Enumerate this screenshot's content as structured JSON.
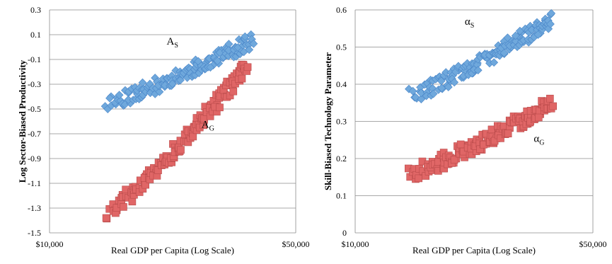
{
  "chart_data": [
    {
      "type": "scatter",
      "title": "",
      "xlabel": "Real GDP per Capita (Log Scale)",
      "ylabel": "Log Sector-Biased Productivity",
      "x_scale": "log",
      "xlim": [
        10000,
        50000
      ],
      "x_ticks": [
        "$10,000",
        "$50,000"
      ],
      "ylim": [
        -1.5,
        0.3
      ],
      "y_ticks": [
        "0.3",
        "0.1",
        "-0.1",
        "-0.3",
        "-0.5",
        "-0.7",
        "-0.9",
        "-1.1",
        "-1.3",
        "-1.5"
      ],
      "grid": true,
      "series": [
        {
          "label_main": "A",
          "label_sub": "S",
          "marker": "diamond",
          "color": "#6fa8dc",
          "x_range": [
            14500,
            37500
          ],
          "y_start": -0.45,
          "y_end": 0.05,
          "label_at": [
            21500,
            0.02
          ]
        },
        {
          "label_main": "A",
          "label_sub": "G",
          "marker": "square",
          "color": "#e06666",
          "x_range": [
            14500,
            36500
          ],
          "y_start": -1.34,
          "y_end": -0.15,
          "label_at": [
            27000,
            -0.65
          ]
        }
      ]
    },
    {
      "type": "scatter",
      "title": "",
      "xlabel": "Real GDP per Capita (Log Scale)",
      "ylabel": "Skill-Biased Technology Parameter",
      "x_scale": "log",
      "xlim": [
        10000,
        50000
      ],
      "x_ticks": [
        "$10,000",
        "$50,000"
      ],
      "ylim": [
        0,
        0.6
      ],
      "y_ticks": [
        "0.6",
        "0.5",
        "0.4",
        "0.3",
        "0.2",
        "0.1",
        "0"
      ],
      "grid": true,
      "series": [
        {
          "label_main": "α",
          "label_sub": "S",
          "marker": "diamond",
          "color": "#6fa8dc",
          "x_range": [
            14500,
            38000
          ],
          "y_start": 0.37,
          "y_end": 0.575,
          "label_at": [
            21000,
            0.56
          ]
        },
        {
          "label_main": "α",
          "label_sub": "G",
          "marker": "square",
          "color": "#e06666",
          "x_range": [
            14500,
            38000
          ],
          "y_start": 0.16,
          "y_end": 0.35,
          "label_at": [
            33500,
            0.245
          ]
        }
      ]
    }
  ]
}
